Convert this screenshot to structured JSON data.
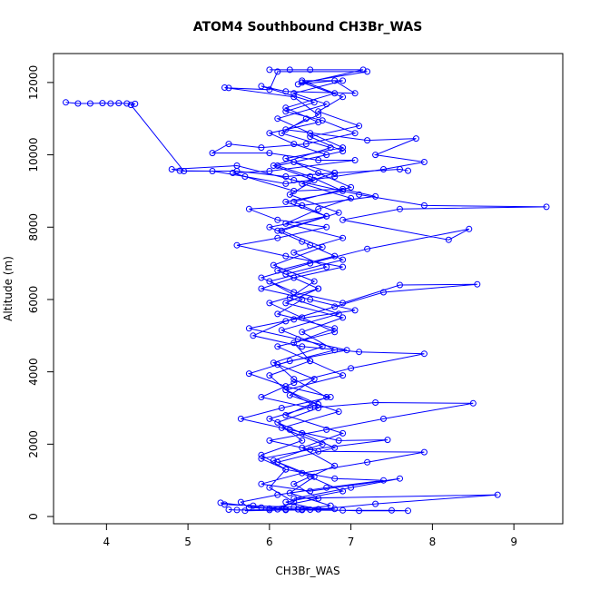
{
  "chart_data": {
    "type": "line",
    "title": "ATOM4 Southbound CH3Br_WAS",
    "xlabel": "CH3Br_WAS",
    "ylabel": "Altitude (m)",
    "xlim": [
      3.35,
      9.6
    ],
    "ylim": [
      -200,
      12800
    ],
    "xticks": [
      4,
      5,
      6,
      7,
      8,
      9
    ],
    "yticks": [
      0,
      2000,
      4000,
      6000,
      8000,
      10000,
      12000
    ],
    "grid": false,
    "color": "#0000FF",
    "marker": "open-circle",
    "series": [
      {
        "points": [
          [
            6.1,
            200
          ],
          [
            6.3,
            400
          ],
          [
            6.0,
            800
          ],
          [
            6.2,
            1300
          ],
          [
            5.9,
            1700
          ],
          [
            6.4,
            2100
          ],
          [
            6.1,
            2600
          ],
          [
            6.6,
            3000
          ],
          [
            6.2,
            3500
          ],
          [
            6.0,
            3900
          ],
          [
            6.5,
            4300
          ],
          [
            6.3,
            4800
          ],
          [
            6.8,
            5200
          ],
          [
            6.1,
            5600
          ],
          [
            6.4,
            6000
          ],
          [
            6.0,
            6500
          ],
          [
            6.7,
            6900
          ],
          [
            6.3,
            7300
          ],
          [
            6.9,
            7700
          ],
          [
            6.2,
            8100
          ],
          [
            6.6,
            8500
          ],
          [
            7.0,
            8800
          ],
          [
            6.4,
            9200
          ],
          [
            6.8,
            9500
          ],
          [
            6.3,
            9800
          ],
          [
            6.9,
            10100
          ],
          [
            6.5,
            10500
          ],
          [
            7.1,
            10800
          ],
          [
            6.6,
            11200
          ],
          [
            6.9,
            11600
          ],
          [
            6.4,
            12000
          ],
          [
            7.2,
            12300
          ],
          [
            6.1,
            12300
          ],
          [
            6.0,
            11800
          ],
          [
            5.5,
            11850
          ],
          [
            5.45,
            11860
          ],
          [
            6.3,
            11600
          ],
          [
            6.6,
            11100
          ],
          [
            6.2,
            10700
          ],
          [
            7.2,
            10400
          ],
          [
            7.8,
            10450
          ],
          [
            7.3,
            10000
          ],
          [
            7.9,
            9800
          ],
          [
            7.4,
            9600
          ],
          [
            6.8,
            9400
          ],
          [
            6.2,
            9200
          ],
          [
            5.7,
            9400
          ],
          [
            5.3,
            9550
          ],
          [
            4.9,
            9560
          ],
          [
            4.8,
            9600
          ],
          [
            5.6,
            9700
          ],
          [
            6.3,
            9300
          ],
          [
            7.1,
            8900
          ],
          [
            7.9,
            8600
          ],
          [
            9.4,
            8560
          ],
          [
            7.6,
            8500
          ],
          [
            6.9,
            8200
          ],
          [
            8.2,
            7650
          ],
          [
            8.45,
            7950
          ],
          [
            7.2,
            7400
          ],
          [
            6.5,
            7000
          ],
          [
            5.9,
            6600
          ],
          [
            6.3,
            6200
          ],
          [
            6.9,
            5900
          ],
          [
            7.6,
            6400
          ],
          [
            8.55,
            6420
          ],
          [
            7.4,
            6200
          ],
          [
            6.8,
            5800
          ],
          [
            6.2,
            5400
          ],
          [
            5.8,
            5000
          ],
          [
            6.4,
            4700
          ],
          [
            7.1,
            4550
          ],
          [
            7.9,
            4500
          ],
          [
            7.0,
            4100
          ],
          [
            6.3,
            3700
          ],
          [
            5.9,
            3300
          ],
          [
            6.5,
            3000
          ],
          [
            7.3,
            3150
          ],
          [
            8.5,
            3130
          ],
          [
            7.4,
            2700
          ],
          [
            6.7,
            2400
          ],
          [
            6.0,
            2100
          ],
          [
            6.6,
            1800
          ],
          [
            7.9,
            1780
          ],
          [
            7.2,
            1500
          ],
          [
            6.4,
            1200
          ],
          [
            5.9,
            900
          ],
          [
            6.5,
            700
          ],
          [
            7.6,
            1050
          ],
          [
            7.0,
            800
          ],
          [
            6.3,
            500
          ],
          [
            8.8,
            600
          ],
          [
            7.3,
            350
          ],
          [
            6.6,
            200
          ],
          [
            6.0,
            180
          ],
          [
            5.7,
            160
          ],
          [
            6.2,
            180
          ],
          [
            6.9,
            170
          ],
          [
            7.5,
            170
          ],
          [
            7.7,
            160
          ],
          [
            7.1,
            160
          ],
          [
            6.4,
            200
          ],
          [
            5.9,
            250
          ],
          [
            5.4,
            380
          ],
          [
            5.45,
            330
          ],
          [
            5.8,
            300
          ],
          [
            6.3,
            260
          ],
          [
            6.8,
            210
          ],
          [
            6.2,
            200
          ],
          [
            6.5,
            190
          ],
          [
            6.0,
            220
          ],
          [
            6.6,
            500
          ],
          [
            6.3,
            900
          ],
          [
            6.8,
            1400
          ],
          [
            6.4,
            1900
          ],
          [
            6.9,
            2300
          ],
          [
            6.2,
            2800
          ],
          [
            6.7,
            3300
          ],
          [
            6.3,
            3800
          ],
          [
            6.1,
            4200
          ],
          [
            6.8,
            4600
          ],
          [
            6.4,
            5100
          ],
          [
            6.9,
            5500
          ],
          [
            6.2,
            5900
          ],
          [
            6.6,
            6300
          ],
          [
            6.1,
            6800
          ],
          [
            6.8,
            7200
          ],
          [
            6.4,
            7600
          ],
          [
            6.0,
            8000
          ],
          [
            6.7,
            8300
          ],
          [
            6.2,
            8700
          ],
          [
            6.9,
            9000
          ],
          [
            6.5,
            9400
          ],
          [
            6.1,
            9700
          ],
          [
            6.7,
            10000
          ],
          [
            6.3,
            10300
          ],
          [
            6.0,
            10600
          ],
          [
            6.6,
            10900
          ],
          [
            6.2,
            11300
          ],
          [
            6.8,
            11700
          ],
          [
            6.4,
            12050
          ],
          [
            6.9,
            12050
          ],
          [
            6.3,
            11700
          ],
          [
            6.7,
            11400
          ],
          [
            6.1,
            11000
          ],
          [
            6.5,
            10600
          ],
          [
            6.9,
            10200
          ],
          [
            6.2,
            9900
          ],
          [
            6.6,
            9500
          ],
          [
            7.0,
            9100
          ],
          [
            6.3,
            8700
          ],
          [
            6.7,
            8300
          ],
          [
            6.1,
            7900
          ],
          [
            6.5,
            7500
          ],
          [
            6.9,
            7100
          ],
          [
            6.2,
            6700
          ],
          [
            6.6,
            6300
          ],
          [
            6.0,
            5900
          ],
          [
            6.4,
            5500
          ],
          [
            6.8,
            5100
          ],
          [
            6.1,
            4700
          ],
          [
            6.5,
            4300
          ],
          [
            6.9,
            3900
          ],
          [
            6.2,
            3500
          ],
          [
            6.6,
            3100
          ],
          [
            6.0,
            2700
          ],
          [
            6.4,
            2300
          ],
          [
            6.8,
            1900
          ],
          [
            6.1,
            1500
          ],
          [
            6.5,
            1100
          ],
          [
            6.9,
            700
          ],
          [
            6.2,
            400
          ],
          [
            6.6,
            200
          ],
          [
            5.6,
            180
          ],
          [
            5.5,
            190
          ]
        ]
      },
      {
        "points": [
          [
            3.5,
            11450
          ],
          [
            3.65,
            11420
          ],
          [
            3.8,
            11420
          ],
          [
            3.95,
            11430
          ],
          [
            4.05,
            11420
          ],
          [
            4.15,
            11430
          ],
          [
            4.25,
            11420
          ],
          [
            4.35,
            11410
          ],
          [
            4.3,
            11380
          ],
          [
            4.95,
            9550
          ],
          [
            5.6,
            9550
          ],
          [
            6.2,
            9400
          ],
          [
            6.8,
            9500
          ],
          [
            7.6,
            9600
          ],
          [
            7.7,
            9560
          ]
        ]
      },
      {
        "points": [
          [
            6.0,
            12350
          ],
          [
            6.25,
            12350
          ],
          [
            6.5,
            12350
          ],
          [
            7.15,
            12350
          ],
          [
            6.35,
            11950
          ],
          [
            6.8,
            12050
          ],
          [
            7.05,
            11700
          ],
          [
            6.2,
            11750
          ],
          [
            5.9,
            11900
          ],
          [
            6.55,
            11450
          ],
          [
            6.2,
            11200
          ],
          [
            6.65,
            10950
          ],
          [
            7.05,
            10600
          ],
          [
            6.45,
            10300
          ],
          [
            5.9,
            10200
          ],
          [
            5.5,
            10300
          ],
          [
            5.3,
            10050
          ],
          [
            6.0,
            10050
          ],
          [
            6.6,
            9850
          ],
          [
            7.05,
            9850
          ],
          [
            6.0,
            9550
          ],
          [
            5.55,
            9500
          ],
          [
            6.3,
            9000
          ],
          [
            6.9,
            9050
          ],
          [
            7.3,
            8850
          ],
          [
            6.4,
            8600
          ],
          [
            5.75,
            8500
          ],
          [
            6.1,
            8200
          ],
          [
            6.7,
            8000
          ],
          [
            6.1,
            7700
          ],
          [
            5.6,
            7500
          ],
          [
            6.2,
            7200
          ],
          [
            6.9,
            6900
          ],
          [
            6.3,
            6600
          ],
          [
            5.9,
            6300
          ],
          [
            6.5,
            6000
          ],
          [
            7.05,
            5700
          ],
          [
            6.3,
            5450
          ],
          [
            5.75,
            5200
          ],
          [
            6.35,
            4900
          ],
          [
            6.95,
            4600
          ],
          [
            6.25,
            4300
          ],
          [
            5.75,
            3950
          ],
          [
            6.2,
            3600
          ],
          [
            6.75,
            3300
          ],
          [
            6.15,
            3000
          ],
          [
            5.65,
            2700
          ],
          [
            6.25,
            2400
          ],
          [
            6.85,
            2100
          ],
          [
            7.45,
            2120
          ],
          [
            6.5,
            1850
          ],
          [
            5.9,
            1600
          ],
          [
            6.2,
            1300
          ],
          [
            6.8,
            1050
          ],
          [
            7.4,
            1000
          ],
          [
            6.7,
            800
          ],
          [
            6.1,
            600
          ],
          [
            5.65,
            400
          ],
          [
            5.75,
            250
          ],
          [
            6.4,
            180
          ]
        ]
      },
      {
        "points": [
          [
            6.45,
            11000
          ],
          [
            6.15,
            10600
          ],
          [
            6.75,
            10200
          ],
          [
            6.05,
            9700
          ],
          [
            6.55,
            9300
          ],
          [
            6.25,
            8900
          ],
          [
            6.85,
            8400
          ],
          [
            6.15,
            7900
          ],
          [
            6.65,
            7450
          ],
          [
            6.05,
            6950
          ],
          [
            6.55,
            6500
          ],
          [
            6.25,
            6050
          ],
          [
            6.85,
            5600
          ],
          [
            6.15,
            5150
          ],
          [
            6.65,
            4700
          ],
          [
            6.05,
            4250
          ],
          [
            6.55,
            3800
          ],
          [
            6.25,
            3350
          ],
          [
            6.85,
            2900
          ],
          [
            6.15,
            2450
          ],
          [
            6.65,
            2000
          ],
          [
            6.05,
            1550
          ],
          [
            6.55,
            1100
          ],
          [
            6.25,
            650
          ],
          [
            6.75,
            300
          ],
          [
            6.35,
            200
          ]
        ]
      }
    ]
  }
}
